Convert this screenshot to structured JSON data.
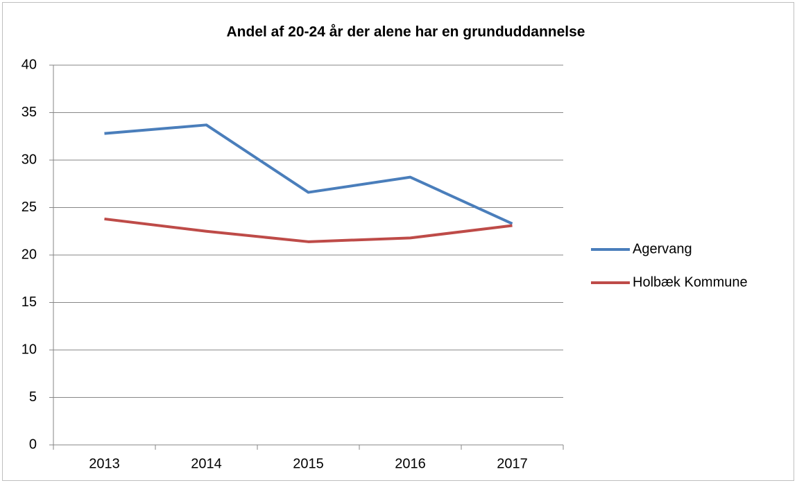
{
  "chart_data": {
    "type": "line",
    "title": "Andel af 20-24  år der alene har en grunduddannelse",
    "categories": [
      "2013",
      "2014",
      "2015",
      "2016",
      "2017"
    ],
    "series": [
      {
        "name": "Agervang",
        "color": "#4a7ebb",
        "values": [
          32.8,
          33.7,
          26.6,
          28.2,
          23.3
        ]
      },
      {
        "name": "Holbæk Kommune",
        "color": "#be4b48",
        "values": [
          23.8,
          22.5,
          21.4,
          21.8,
          23.1
        ]
      }
    ],
    "ylim": [
      0,
      40
    ],
    "yticks": [
      0,
      5,
      10,
      15,
      20,
      25,
      30,
      35,
      40
    ],
    "grid": true,
    "legend": "right"
  }
}
